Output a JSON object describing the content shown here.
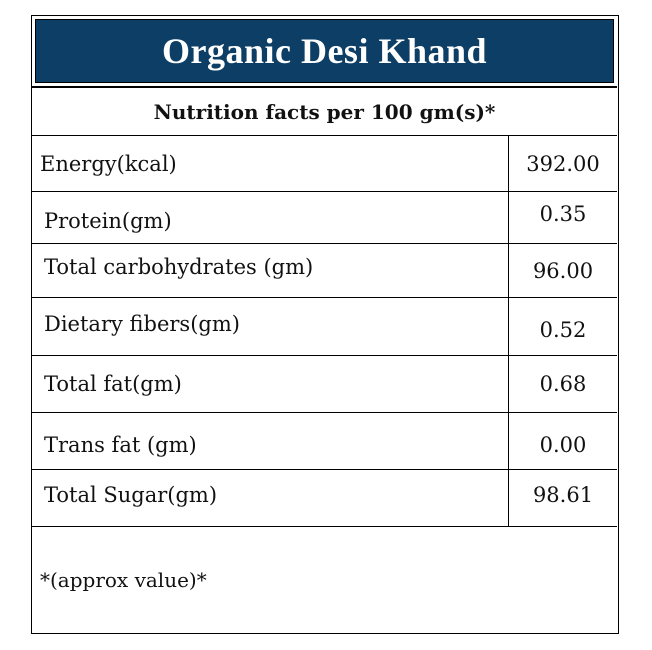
{
  "title": "Organic Desi Khand",
  "subtitle": "Nutrition facts per 100 gm(s)*",
  "rows": [
    {
      "name": "Energy(kcal)",
      "value": "392.00"
    },
    {
      "name": "Protein(gm)",
      "value": "0.35"
    },
    {
      "name": "Total carbohydrates (gm)",
      "value": "96.00"
    },
    {
      "name": "Dietary fibers(gm)",
      "value": "0.52"
    },
    {
      "name": "Total fat(gm)",
      "value": "0.68"
    },
    {
      "name": "Trans fat (gm)",
      "value": "0.00"
    },
    {
      "name": "Total Sugar(gm)",
      "value": "98.61"
    }
  ],
  "footnote": "*(approx value)*",
  "colors": {
    "header_bg": "#0d3e66",
    "header_text": "#ffffff"
  }
}
